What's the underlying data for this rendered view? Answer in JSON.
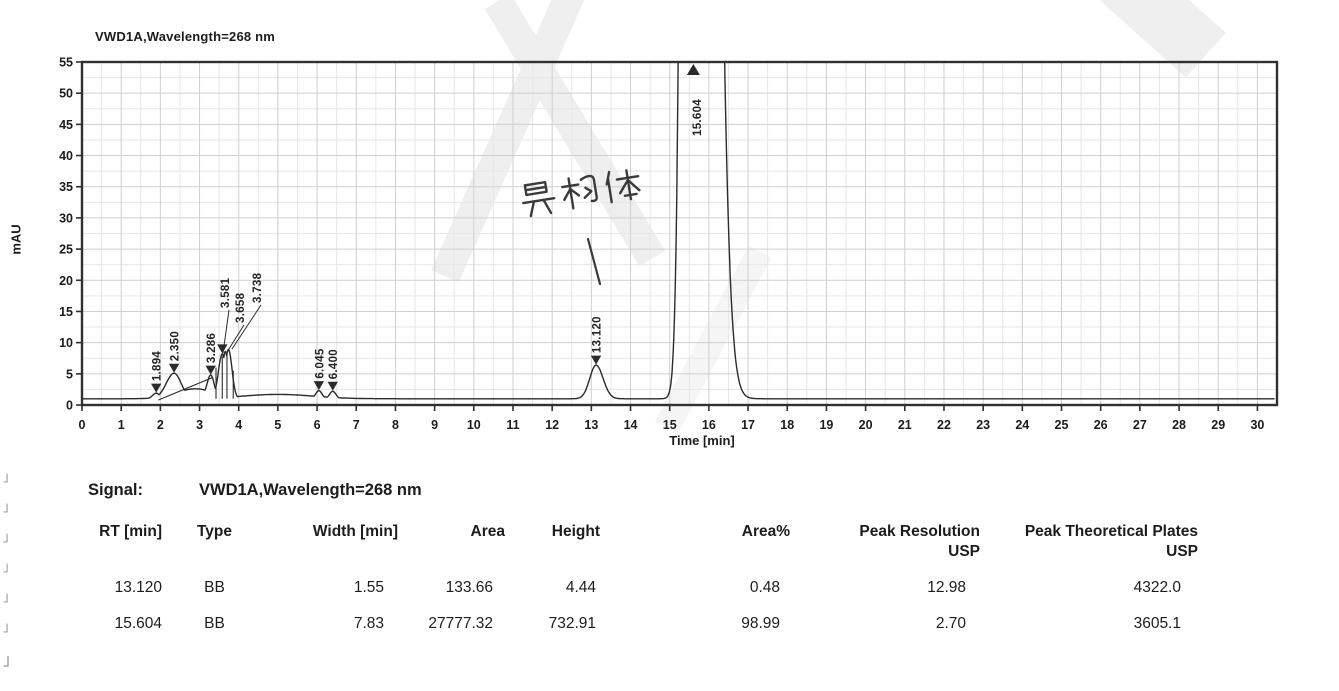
{
  "page": {
    "background": "#ffffff",
    "margin_marks": [
      "」",
      "」",
      "」",
      "」",
      "」",
      "」",
      "」"
    ]
  },
  "chart_data": {
    "type": "line",
    "title": "VWD1A,Wavelength=268 nm",
    "xlabel": "Time [min]",
    "ylabel": "mAU",
    "xlim": [
      0,
      30.5
    ],
    "ylim": [
      0,
      55
    ],
    "x_ticks": [
      0,
      1,
      2,
      3,
      4,
      5,
      6,
      7,
      8,
      9,
      10,
      11,
      12,
      13,
      14,
      15,
      16,
      17,
      18,
      19,
      20,
      21,
      22,
      23,
      24,
      25,
      26,
      27,
      28,
      29,
      30
    ],
    "y_ticks": [
      0,
      5,
      10,
      15,
      20,
      25,
      30,
      35,
      40,
      45,
      50,
      55
    ],
    "grid": true,
    "legend": "none",
    "baseline_mAU": 1.0,
    "peaks": [
      {
        "rt": 1.894,
        "label": "1.894",
        "apex_mAU": 1.9,
        "sl": 0.09,
        "sr": 0.09
      },
      {
        "rt": 2.35,
        "label": "2.350",
        "apex_mAU": 5.1,
        "sl": 0.2,
        "sr": 0.18
      },
      {
        "rt": 2.9,
        "label": null,
        "apex_mAU": 2.6,
        "sl": 0.5,
        "sr": 0.45,
        "marker": false
      },
      {
        "rt": 3.286,
        "label": "3.286",
        "apex_mAU": 4.8,
        "sl": 0.1,
        "sr": 0.09
      },
      {
        "rt": 3.581,
        "label": "3.581",
        "apex_mAU": 8.2,
        "sl": 0.1,
        "sr": 0.08
      },
      {
        "rt": 3.658,
        "label": "3.658",
        "apex_mAU": 8.6,
        "sl": 0.07,
        "sr": 0.07,
        "marker": false
      },
      {
        "rt": 3.738,
        "label": "3.738",
        "apex_mAU": 8.9,
        "sl": 0.09,
        "sr": 0.09,
        "marker": false
      },
      {
        "rt": 5.0,
        "label": null,
        "apex_mAU": 1.7,
        "sl": 0.9,
        "sr": 0.9,
        "marker": false
      },
      {
        "rt": 6.045,
        "label": "6.045",
        "apex_mAU": 2.3,
        "sl": 0.08,
        "sr": 0.08
      },
      {
        "rt": 6.4,
        "label": "6.400",
        "apex_mAU": 2.2,
        "sl": 0.08,
        "sr": 0.08
      },
      {
        "rt": 13.12,
        "label": "13.120",
        "apex_mAU": 6.4,
        "sl": 0.16,
        "sr": 0.18
      },
      {
        "rt": 15.604,
        "label": "15.604",
        "apex_mAU": 733.9,
        "sl": 0.17,
        "sr": 0.35,
        "clipped": true
      }
    ],
    "integration_segments": [
      [
        [
          1.95,
          0.8
        ],
        [
          3.33,
          4.4
        ]
      ],
      [
        [
          3.42,
          1.0
        ],
        [
          3.42,
          6.0
        ]
      ],
      [
        [
          3.58,
          1.0
        ],
        [
          3.58,
          7.8
        ]
      ],
      [
        [
          3.7,
          1.0
        ],
        [
          3.7,
          8.3
        ]
      ],
      [
        [
          3.86,
          1.0
        ],
        [
          3.86,
          5.5
        ]
      ]
    ],
    "annotation": {
      "text": "异构体",
      "style": "handwritten",
      "points_to_peak": 13.12
    },
    "colors": {
      "trace": "#2b2b2b",
      "grid_major": "#cfcfcf",
      "grid_minor": "#e7e7e7",
      "frame": "#303030",
      "pen": "#3a3a3a"
    }
  },
  "table": {
    "signal_label": "Signal:",
    "signal_value": "VWD1A,Wavelength=268 nm",
    "columns": [
      [
        "RT [min]"
      ],
      [
        "Type"
      ],
      [
        "Width [min]"
      ],
      [
        "Area"
      ],
      [
        "Height"
      ],
      [
        "Area%"
      ],
      [
        "Peak Resolution",
        "USP"
      ],
      [
        "Peak Theoretical Plates",
        "USP"
      ]
    ],
    "rows": [
      [
        "13.120",
        "BB",
        "1.55",
        "133.66",
        "4.44",
        "0.48",
        "12.98",
        "4322.0"
      ],
      [
        "15.604",
        "BB",
        "7.83",
        "27777.32",
        "732.91",
        "98.99",
        "2.70",
        "3605.1"
      ]
    ]
  }
}
